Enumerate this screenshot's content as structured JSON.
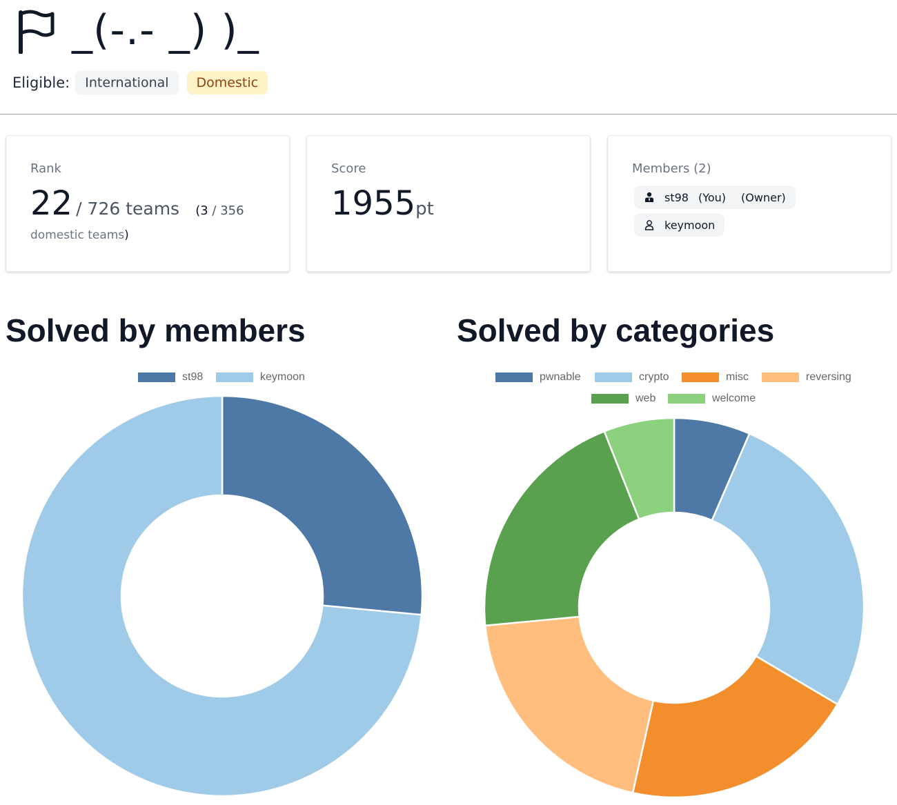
{
  "team": {
    "name": "_(-.- _) )_",
    "eligible_label": "Eligible:",
    "eligibility": [
      "International",
      "Domestic"
    ]
  },
  "rank_card": {
    "label": "Rank",
    "rank": "22",
    "total": "/ 726 teams",
    "domestic_open": "(",
    "domestic_rank": "3",
    "domestic_total": "/ 356",
    "domestic_suffix": "domestic teams",
    "domestic_close": ")"
  },
  "score_card": {
    "label": "Score",
    "value": "1955",
    "unit": "pt"
  },
  "members_card": {
    "label": "Members (2)",
    "members": [
      {
        "name": "st98",
        "you": "(You)",
        "role": "(Owner)",
        "icon": "user-tie-icon"
      },
      {
        "name": "keymoon",
        "icon": "user-icon"
      }
    ]
  },
  "sections": {
    "members_title": "Solved by members",
    "categories_title": "Solved by categories"
  },
  "colors": {
    "st98": "#4e79a7",
    "keymoon": "#a0cbe8",
    "pwnable": "#4e79a7",
    "crypto": "#a0cbe8",
    "misc": "#f28e2b",
    "reversing": "#ffbe7d",
    "web": "#59a14f",
    "welcome": "#8cd17d"
  },
  "chart_data": [
    {
      "type": "pie",
      "title": "Solved by members",
      "categories": [
        "st98",
        "keymoon"
      ],
      "values": [
        26.5,
        73.5
      ],
      "legend": "top"
    },
    {
      "type": "pie",
      "title": "Solved by categories",
      "categories": [
        "pwnable",
        "crypto",
        "misc",
        "reversing",
        "web",
        "welcome"
      ],
      "values": [
        6.5,
        27,
        20,
        20,
        20.5,
        6
      ],
      "legend": "top"
    }
  ]
}
